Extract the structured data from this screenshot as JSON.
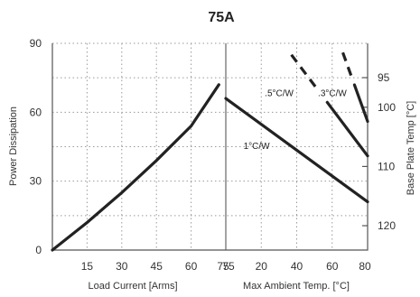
{
  "chart_data": {
    "type": "line",
    "title": "75A",
    "left_panel": {
      "xlabel": "Load Current  [Arms]",
      "ylabel": "Power Dissipation",
      "x_ticks": [
        15,
        30,
        45,
        60,
        75
      ],
      "xlim": [
        0,
        75
      ],
      "ylim": [
        0,
        90
      ],
      "y_ticks": [
        0,
        30,
        60,
        90
      ],
      "series": [
        {
          "x": [
            0,
            15,
            30,
            45,
            60,
            72
          ],
          "y": [
            0,
            12,
            25,
            39,
            54,
            72
          ]
        }
      ]
    },
    "right_panel": {
      "xlabel": "Max Ambient Temp. [°C]",
      "ylabel": "Base Plate Temp [°C]",
      "x_ticks": [
        20,
        40,
        60,
        80
      ],
      "tick_labels": [
        "75",
        "20",
        "40",
        "60",
        "80"
      ],
      "y_ticks": [
        95,
        100,
        110,
        120
      ],
      "series": [
        {
          "name": "1°C/W",
          "x": [
            0,
            80
          ],
          "y": [
            66,
            21
          ],
          "style": "solid"
        },
        {
          "name": ".5°C/W",
          "x": [
            37,
            80
          ],
          "y": [
            85,
            41
          ],
          "style": "dashed-solid"
        },
        {
          "name": ".3°C/W",
          "x": [
            66,
            80
          ],
          "y": [
            86,
            56
          ],
          "style": "dashed-solid"
        }
      ]
    }
  }
}
